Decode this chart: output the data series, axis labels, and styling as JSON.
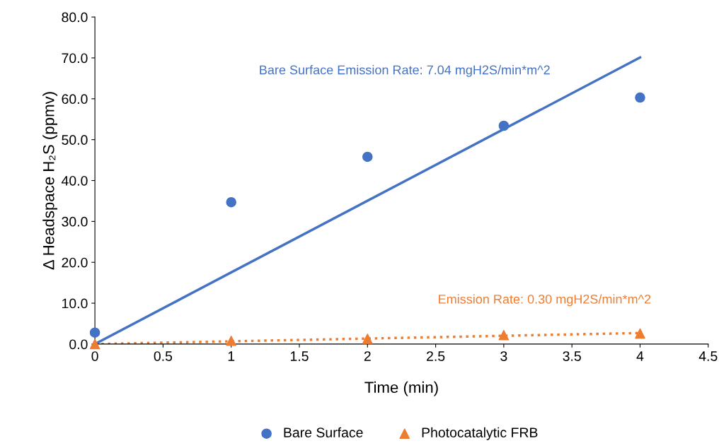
{
  "chart_data": {
    "type": "scatter",
    "xlabel": "Time (min)",
    "ylabel": "Δ Headspace H₂S (ppmv)",
    "xlim": [
      0,
      4.5
    ],
    "xticks": [
      0,
      0.5,
      1,
      1.5,
      2,
      2.5,
      3,
      3.5,
      4,
      4.5
    ],
    "ylim": [
      0,
      80
    ],
    "yticks": [
      {
        "value": 0,
        "label": "0.0"
      },
      {
        "value": 10,
        "label": "10.0"
      },
      {
        "value": 20,
        "label": "20.0"
      },
      {
        "value": 30,
        "label": "30.0"
      },
      {
        "value": 40,
        "label": "40.0"
      },
      {
        "value": 50,
        "label": "50.0"
      },
      {
        "value": 60,
        "label": "60.0"
      },
      {
        "value": 70,
        "label": "70.0"
      },
      {
        "value": 80,
        "label": "80.0"
      }
    ],
    "grid": false,
    "legend": "bottom",
    "series": [
      {
        "name": "Bare Surface",
        "marker": "circle",
        "color": "#4472c4",
        "x": [
          0,
          1,
          2,
          3,
          4
        ],
        "values": [
          2.8,
          34.7,
          45.8,
          53.4,
          60.3
        ]
      },
      {
        "name": "Photocatalytic FRB",
        "marker": "triangle",
        "color": "#ed7d31",
        "x": [
          0,
          1,
          2,
          3,
          4
        ],
        "values": [
          0,
          0.8,
          1.3,
          2.2,
          2.6
        ]
      },
      {
        "type": "line",
        "line_style": "solid",
        "color": "#4472c4",
        "x": [
          0,
          4
        ],
        "values": [
          0,
          70.1
        ]
      },
      {
        "type": "line",
        "line_style": "dotted",
        "color": "#ed7d31",
        "x": [
          0,
          4
        ],
        "values": [
          0,
          2.7
        ]
      }
    ],
    "annotations": [
      "Bare Surface Emission Rate: 7.04 mgH2S/min*m^2",
      "Emission Rate: 0.30 mgH2S/min*m^2"
    ]
  }
}
